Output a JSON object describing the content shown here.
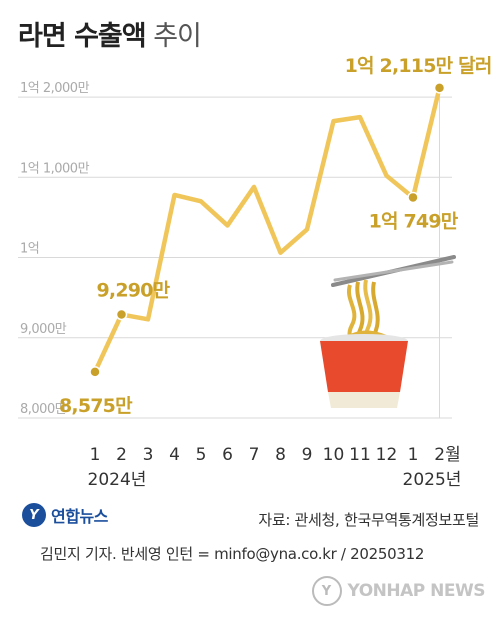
{
  "title": {
    "main": "라면 수출액",
    "sub": "추이"
  },
  "chart_data": {
    "type": "line",
    "title": "라면 수출액 추이",
    "x_labels": [
      "1",
      "2",
      "3",
      "4",
      "5",
      "6",
      "7",
      "8",
      "9",
      "10",
      "11",
      "12",
      "1",
      "2월"
    ],
    "year_labels": [
      "2024년",
      "2025년"
    ],
    "series": [
      {
        "values": [
          8575,
          9290,
          9230,
          10780,
          10700,
          10400,
          10880,
          10060,
          10350,
          11700,
          11750,
          11020,
          10749,
          12115
        ]
      }
    ],
    "y_ticks": [
      {
        "value": 8000,
        "label": "8,000만"
      },
      {
        "value": 9000,
        "label": "9,000만"
      },
      {
        "value": 10000,
        "label": "1억"
      },
      {
        "value": 11000,
        "label": "1억 1,000만"
      },
      {
        "value": 12000,
        "label": "1억 2,000만"
      }
    ],
    "ylim": [
      8000,
      12300
    ],
    "grid": true,
    "annotations": [
      {
        "index": 0,
        "text": "8,575만"
      },
      {
        "index": 1,
        "text": "9,290만"
      },
      {
        "index": 12,
        "text": "1억 749만"
      },
      {
        "index": 13,
        "text": "1억 2,115만 달러"
      }
    ],
    "colors": {
      "line": "#f0c65a",
      "point": "#c9a12a",
      "label": "#c9a12a",
      "grid": "#d9d9d9",
      "tick": "#aaaaaa"
    }
  },
  "footer": {
    "logo_mark": "Y",
    "logo_text": "연합뉴스",
    "source": "자료: 관세청, 한국무역통계정보포털",
    "credit": "김민지 기자. 반세영 인턴 = minfo@yna.co.kr / 20250312",
    "watermark_mark": "Y",
    "watermark_text": "YONHAP NEWS"
  }
}
